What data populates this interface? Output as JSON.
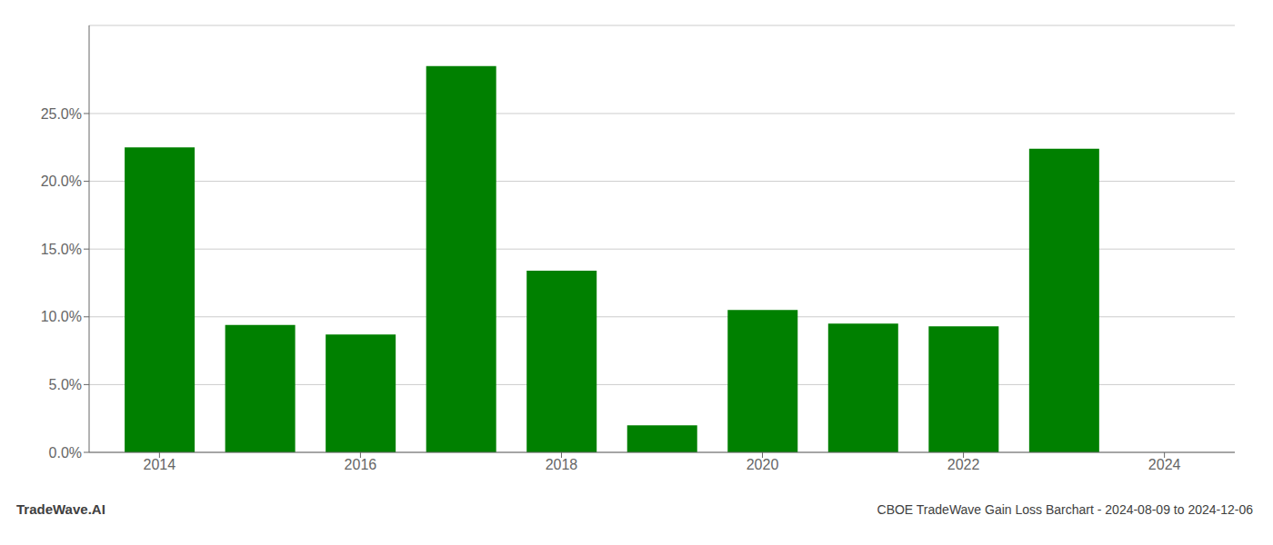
{
  "chart_data": {
    "type": "bar",
    "title": "CBOE TradeWave Gain Loss Barchart - 2024-08-09 to 2024-12-06",
    "annotations": [
      "TradeWave.AI"
    ],
    "x": [
      2014,
      2015,
      2016,
      2017,
      2018,
      2019,
      2020,
      2021,
      2022,
      2023,
      2024
    ],
    "values": [
      0.225,
      0.094,
      0.087,
      0.285,
      0.134,
      0.02,
      0.105,
      0.095,
      0.093,
      0.224,
      0.0
    ],
    "color": "#008000",
    "xlim": [
      2013.3,
      2024.7
    ],
    "xticks": [
      2014,
      2016,
      2018,
      2020,
      2022,
      2024
    ],
    "ylim": [
      0,
      0.315
    ],
    "yticks": [
      {
        "value": 0.0,
        "label": "0.0%"
      },
      {
        "value": 0.05,
        "label": "5.0%"
      },
      {
        "value": 0.1,
        "label": "10.0%"
      },
      {
        "value": 0.15,
        "label": "15.0%"
      },
      {
        "value": 0.2,
        "label": "20.0%"
      },
      {
        "value": 0.25,
        "label": "25.0%"
      }
    ],
    "grid": true
  }
}
